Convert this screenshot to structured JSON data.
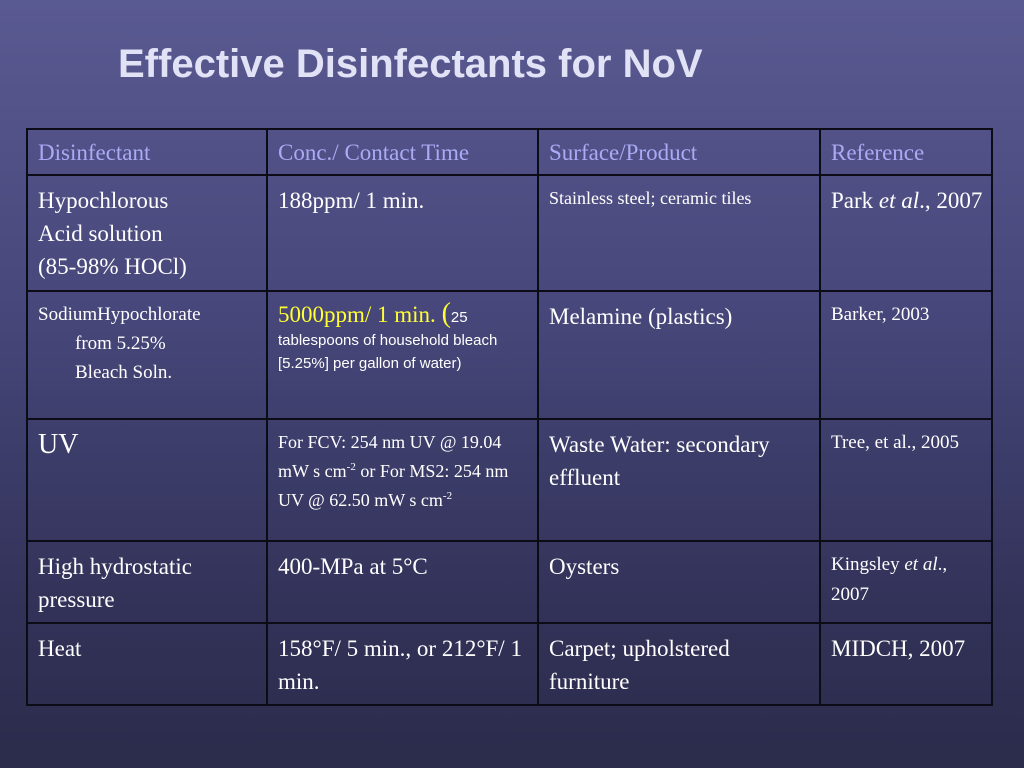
{
  "title": "Effective Disinfectants for NoV",
  "headers": [
    "Disinfectant",
    "Conc./ Contact Time",
    "Surface/Product",
    "Reference"
  ],
  "rows": [
    {
      "disinfectant": [
        "Hypochlorous",
        "Acid solution",
        "(85-98% HOCl)"
      ],
      "conc": "188ppm/ 1 min.",
      "surface": "Stainless steel; ceramic tiles",
      "ref_author": "Park ",
      "ref_etal": "et al",
      "ref_rest": "., 2007"
    },
    {
      "disinfectant_first": "SodiumHypochlorate",
      "disinfectant_lines": [
        "from 5.25%",
        "Bleach Soln."
      ],
      "conc_main": "5000ppm/  1 min. ",
      "conc_paren": "(",
      "conc_note": "25 tablespoons of household bleach [5.25%] per gallon of water)",
      "surface": "Melamine (plastics)",
      "ref": "Barker, 2003"
    },
    {
      "disinfectant": "UV",
      "conc_part1": "For FCV: 254 nm UV @ 19.04 mW s cm",
      "conc_sup1": "-2",
      "conc_part2": " or For MS2: 254 nm UV @ 62.50 mW s cm",
      "conc_sup2": "-2",
      "surface": "Waste Water: secondary effluent",
      "ref": "Tree, et al., 2005"
    },
    {
      "disinfectant": "High hydrostatic pressure",
      "conc": "400-MPa at 5°C",
      "surface": "Oysters",
      "ref_author": "Kingsley ",
      "ref_etal": "et al",
      "ref_rest": "., 2007"
    },
    {
      "disinfectant": "Heat",
      "conc": "158°F/ 5 min., or 212°F/ 1 min.",
      "surface": "Carpet; upholstered furniture",
      "ref": "MIDCH, 2007"
    }
  ],
  "colors": {
    "background_top": "#5a5a92",
    "background_bottom": "#2b2b4b",
    "title": "#e2e2f6",
    "header_text": "#aaaaf5",
    "body_text": "#ffffff",
    "highlight_text": "#ffff33",
    "grid": "#0c0c16"
  }
}
